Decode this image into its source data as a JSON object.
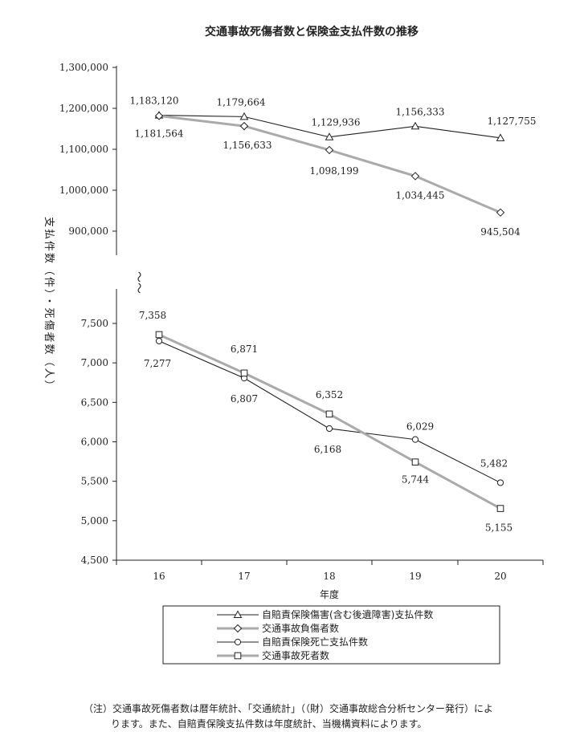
{
  "chart_data": {
    "type": "line",
    "title": "交通事故死傷者数と保険金支払件数の推移",
    "xlabel": "年度",
    "ylabel": "支払件数（件）・死傷者数（人）",
    "axis_break_symbol": "〜〜",
    "categories": [
      "16",
      "17",
      "18",
      "19",
      "20"
    ],
    "upper_panel": {
      "ylim": [
        850000,
        1300000
      ],
      "yticks": [
        900000,
        1000000,
        1100000,
        1200000,
        1300000
      ],
      "ytick_labels": [
        "900,000",
        "1,000,000",
        "1,100,000",
        "1,200,000",
        "1,300,000"
      ]
    },
    "lower_panel": {
      "ylim": [
        4500,
        7650
      ],
      "yticks": [
        4500,
        5000,
        5500,
        6000,
        6500,
        7000,
        7500
      ],
      "ytick_labels": [
        "4,500",
        "5,000",
        "5,500",
        "6,000",
        "6,500",
        "7,000",
        "7,500"
      ]
    },
    "series": [
      {
        "name": "自賠責保険傷害(含む後遺障害)支払件数",
        "panel": "upper",
        "marker": "triangle",
        "color": "#222222",
        "values": [
          1183120,
          1179664,
          1129936,
          1156333,
          1127755
        ],
        "labels": [
          "1,183,120",
          "1,179,664",
          "1,129,936",
          "1,156,333",
          "1,127,755"
        ]
      },
      {
        "name": "交通事故負傷者数",
        "panel": "upper",
        "marker": "diamond",
        "color": "#aaaaaa",
        "values": [
          1181564,
          1156633,
          1098199,
          1034445,
          945504
        ],
        "labels": [
          "1,181,564",
          "1,156,633",
          "1,098,199",
          "1,034,445",
          "945,504"
        ]
      },
      {
        "name": "自賠責保険死亡支払件数",
        "panel": "lower",
        "marker": "circle",
        "color": "#222222",
        "values": [
          7277,
          6807,
          6168,
          6029,
          5482
        ],
        "labels": [
          "7,277",
          "6,807",
          "6,168",
          "6,029",
          "5,482"
        ]
      },
      {
        "name": "交通事故死者数",
        "panel": "lower",
        "marker": "square",
        "color": "#aaaaaa",
        "values": [
          7358,
          6871,
          6352,
          5744,
          5155
        ],
        "labels": [
          "7,358",
          "6,871",
          "6,352",
          "5,744",
          "5,155"
        ]
      }
    ],
    "legend_position": "bottom-center"
  },
  "note": {
    "line1": "（注）交通事故死傷者数は暦年統計、「交通統計」（（財）交通事故総合分析センター発行）によ",
    "line2": "ります。また、自賠責保険支払件数は年度統計、当機構資料によります。"
  }
}
